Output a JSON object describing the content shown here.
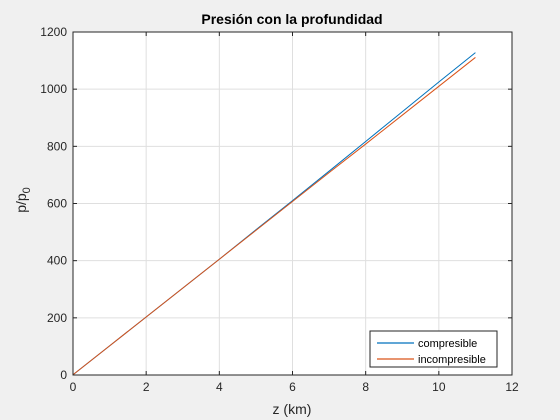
{
  "chart_data": {
    "type": "line",
    "title": "Presión con la profundidad",
    "xlabel": "z (km)",
    "ylabel_main": "p/p",
    "ylabel_sub": "0",
    "xlim": [
      0,
      12
    ],
    "ylim": [
      0,
      1200
    ],
    "xticks": [
      0,
      2,
      4,
      6,
      8,
      10,
      12
    ],
    "yticks": [
      0,
      200,
      400,
      600,
      800,
      1000,
      1200
    ],
    "grid": true,
    "legend_position": "bottom-right",
    "series": [
      {
        "name": "compresible",
        "color": "#0072bd",
        "x": [
          0,
          1,
          2,
          3,
          4,
          5,
          6,
          7,
          8,
          9,
          10,
          11
        ],
        "y": [
          1,
          102,
          203,
          304,
          405,
          508,
          610,
          713,
          817,
          921,
          1025,
          1128
        ]
      },
      {
        "name": "incompresible",
        "color": "#d95319",
        "x": [
          0,
          1,
          2,
          3,
          4,
          5,
          6,
          7,
          8,
          9,
          10,
          11
        ],
        "y": [
          1,
          102,
          203,
          304,
          405,
          506,
          607,
          708,
          808,
          909,
          1010,
          1111
        ]
      }
    ]
  }
}
